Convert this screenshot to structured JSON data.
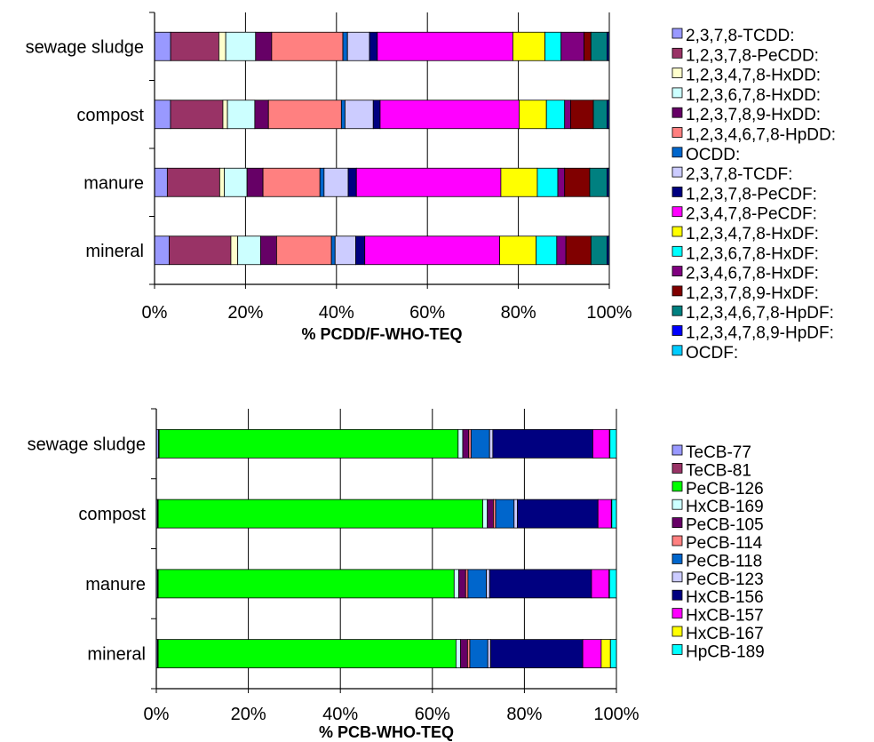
{
  "chart_data": [
    {
      "type": "bar",
      "stacked": true,
      "orientation": "horizontal",
      "normalized": true,
      "title": "",
      "xlabel": "% PCDD/F-WHO-TEQ",
      "ylabel": "",
      "xlim": [
        0,
        100
      ],
      "xticks": [
        "0%",
        "20%",
        "40%",
        "60%",
        "80%",
        "100%"
      ],
      "grid": true,
      "legend_position": "right",
      "categories": [
        "sewage sludge",
        "compost",
        "manure",
        "mineral"
      ],
      "series": [
        {
          "name": "2,3,7,8-TCDD:",
          "color": "#9999ff",
          "values": [
            3.5,
            3.5,
            2.8,
            3.2
          ]
        },
        {
          "name": "1,2,3,7,8-PeCDD:",
          "color": "#993366",
          "values": [
            10.5,
            11.5,
            11.5,
            13.5
          ]
        },
        {
          "name": "1,2,3,4,7,8-HxDD:",
          "color": "#ffffcc",
          "values": [
            1.5,
            1.0,
            1.0,
            1.5
          ]
        },
        {
          "name": "1,2,3,6,7,8-HxDD:",
          "color": "#ccffff",
          "values": [
            6.5,
            6.0,
            5.0,
            5.0
          ]
        },
        {
          "name": "1,2,3,7,8,9-HxDD:",
          "color": "#660066",
          "values": [
            3.5,
            3.0,
            3.5,
            3.5
          ]
        },
        {
          "name": "1,2,3,4,6,7,8-HpDD:",
          "color": "#ff8080",
          "values": [
            15.5,
            16.0,
            12.5,
            12.0
          ]
        },
        {
          "name": "OCDD:",
          "color": "#0066cc",
          "values": [
            1.0,
            0.8,
            0.9,
            0.8
          ]
        },
        {
          "name": "2,3,7,8-TCDF:",
          "color": "#ccccff",
          "values": [
            4.8,
            6.2,
            5.3,
            4.5
          ]
        },
        {
          "name": "1,2,3,7,8-PeCDF:",
          "color": "#000080",
          "values": [
            1.7,
            1.5,
            1.8,
            2.0
          ]
        },
        {
          "name": "2,3,4,7,8-PeCDF:",
          "color": "#ff00ff",
          "values": [
            29.5,
            30.5,
            31.7,
            29.5
          ]
        },
        {
          "name": "1,2,3,4,7,8-HxDF:",
          "color": "#ffff00",
          "values": [
            7.0,
            6.0,
            8.0,
            8.0
          ]
        },
        {
          "name": "1,2,3,6,7,8-HxDF:",
          "color": "#00ffff",
          "values": [
            3.5,
            4.0,
            4.5,
            4.5
          ]
        },
        {
          "name": "2,3,4,6,7,8-HxDF:",
          "color": "#800080",
          "values": [
            5.0,
            1.3,
            1.5,
            2.0
          ]
        },
        {
          "name": "1,2,3,7,8,9-HxDF:",
          "color": "#800000",
          "values": [
            1.5,
            5.0,
            5.5,
            5.5
          ]
        },
        {
          "name": "1,2,3,4,6,7,8-HpDF:",
          "color": "#008080",
          "values": [
            3.5,
            3.0,
            3.8,
            3.5
          ]
        },
        {
          "name": "1,2,3,4,7,8,9-HpDF:",
          "color": "#0000ff",
          "values": [
            0.3,
            0.3,
            0.3,
            0.3
          ]
        },
        {
          "name": "OCDF:",
          "color": "#00ccff",
          "values": [
            0.2,
            0.2,
            0.2,
            0.2
          ]
        }
      ]
    },
    {
      "type": "bar",
      "stacked": true,
      "orientation": "horizontal",
      "normalized": true,
      "title": "",
      "xlabel": "% PCB-WHO-TEQ",
      "ylabel": "",
      "xlim": [
        0,
        100
      ],
      "xticks": [
        "0%",
        "20%",
        "40%",
        "60%",
        "80%",
        "100%"
      ],
      "grid": true,
      "legend_position": "right",
      "categories": [
        "sewage sludge",
        "compost",
        "manure",
        "mineral"
      ],
      "series": [
        {
          "name": "TeCB-77",
          "color": "#9999ff",
          "values": [
            0.5,
            0.3,
            0.3,
            0.3
          ]
        },
        {
          "name": "TeCB-81",
          "color": "#993366",
          "values": [
            0.1,
            0.1,
            0.1,
            0.1
          ]
        },
        {
          "name": "PeCB-126",
          "color": "#00ff00",
          "values": [
            64.6,
            70.4,
            64.2,
            64.6
          ]
        },
        {
          "name": "HxCB-169",
          "color": "#ccffff",
          "values": [
            1.0,
            1.0,
            1.0,
            1.0
          ]
        },
        {
          "name": "PeCB-105",
          "color": "#660066",
          "values": [
            1.3,
            1.3,
            1.5,
            1.5
          ]
        },
        {
          "name": "PeCB-114",
          "color": "#ff8080",
          "values": [
            0.5,
            0.5,
            0.5,
            0.5
          ]
        },
        {
          "name": "PeCB-118",
          "color": "#0066cc",
          "values": [
            4.0,
            4.0,
            4.0,
            3.9
          ]
        },
        {
          "name": "PeCB-123",
          "color": "#ccccff",
          "values": [
            0.7,
            0.7,
            0.7,
            0.6
          ]
        },
        {
          "name": "HxCB-156",
          "color": "#000080",
          "values": [
            21.6,
            17.5,
            22.1,
            20.0
          ]
        },
        {
          "name": "HxCB-157",
          "color": "#ff00ff",
          "values": [
            3.6,
            2.9,
            3.8,
            4.0
          ]
        },
        {
          "name": "HxCB-167",
          "color": "#ffff00",
          "values": [
            0.1,
            0.1,
            0.1,
            2.0
          ]
        },
        {
          "name": "HpCB-189",
          "color": "#00ffff",
          "values": [
            1.4,
            1.0,
            1.5,
            1.3
          ]
        }
      ]
    }
  ]
}
